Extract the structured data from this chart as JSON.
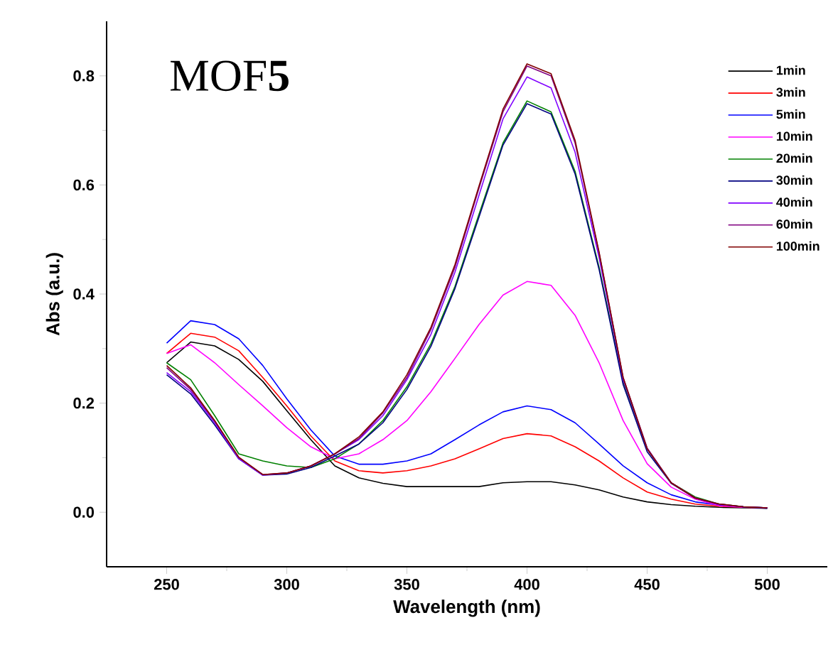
{
  "chart_data": {
    "type": "line",
    "title": "MOF**5**",
    "xlabel": "Wavelength (nm)",
    "ylabel": "Abs (a.u.)",
    "x": [
      250,
      260,
      270,
      280,
      290,
      300,
      310,
      320,
      330,
      340,
      350,
      360,
      370,
      380,
      390,
      400,
      410,
      420,
      430,
      440,
      450,
      460,
      470,
      480,
      490,
      500
    ],
    "xlim": [
      225,
      525
    ],
    "xticks": [
      250,
      300,
      350,
      400,
      450,
      500
    ],
    "ylim": [
      -0.1,
      0.9
    ],
    "yticks": [
      {
        "value": 0,
        "label": "0.0"
      },
      {
        "value": 0.2,
        "label": "0.2"
      },
      {
        "value": 0.4,
        "label": "0.4"
      },
      {
        "value": 0.6,
        "label": "0.6"
      },
      {
        "value": 0.8,
        "label": "0.8"
      }
    ],
    "legend": "top right",
    "marker": "none",
    "line_style": "solid",
    "series": [
      {
        "name": "1min",
        "color": "#000000",
        "values": [
          0.274,
          0.312,
          0.305,
          0.28,
          0.24,
          0.186,
          0.133,
          0.085,
          0.063,
          0.053,
          0.047,
          0.047,
          0.047,
          0.047,
          0.054,
          0.056,
          0.056,
          0.05,
          0.041,
          0.028,
          0.019,
          0.014,
          0.011,
          0.009,
          0.008,
          0.007
        ]
      },
      {
        "name": "3min",
        "color": "#ff0000",
        "values": [
          0.291,
          0.328,
          0.321,
          0.296,
          0.247,
          0.195,
          0.14,
          0.094,
          0.076,
          0.072,
          0.076,
          0.085,
          0.098,
          0.116,
          0.135,
          0.144,
          0.14,
          0.12,
          0.094,
          0.063,
          0.037,
          0.024,
          0.015,
          0.011,
          0.009,
          0.008
        ]
      },
      {
        "name": "5min",
        "color": "#0000ff",
        "values": [
          0.31,
          0.351,
          0.344,
          0.318,
          0.269,
          0.208,
          0.151,
          0.103,
          0.088,
          0.088,
          0.094,
          0.107,
          0.133,
          0.16,
          0.184,
          0.195,
          0.188,
          0.164,
          0.125,
          0.085,
          0.054,
          0.032,
          0.019,
          0.013,
          0.01,
          0.008
        ]
      },
      {
        "name": "10min",
        "color": "#ff00ff",
        "values": [
          0.291,
          0.307,
          0.274,
          0.234,
          0.195,
          0.155,
          0.12,
          0.098,
          0.107,
          0.133,
          0.168,
          0.221,
          0.282,
          0.344,
          0.398,
          0.423,
          0.416,
          0.361,
          0.274,
          0.168,
          0.089,
          0.046,
          0.024,
          0.012,
          0.009,
          0.008
        ]
      },
      {
        "name": "20min",
        "color": "#008000",
        "values": [
          0.274,
          0.243,
          0.177,
          0.107,
          0.094,
          0.085,
          0.082,
          0.098,
          0.125,
          0.168,
          0.23,
          0.309,
          0.414,
          0.546,
          0.677,
          0.754,
          0.734,
          0.625,
          0.449,
          0.239,
          0.116,
          0.054,
          0.028,
          0.015,
          0.01,
          0.008
        ]
      },
      {
        "name": "30min",
        "color": "#000080",
        "values": [
          0.252,
          0.217,
          0.16,
          0.098,
          0.068,
          0.07,
          0.082,
          0.103,
          0.125,
          0.164,
          0.225,
          0.304,
          0.41,
          0.541,
          0.673,
          0.749,
          0.73,
          0.62,
          0.445,
          0.234,
          0.111,
          0.053,
          0.026,
          0.014,
          0.01,
          0.007
        ]
      },
      {
        "name": "40min",
        "color": "#8000ff",
        "values": [
          0.256,
          0.221,
          0.164,
          0.098,
          0.068,
          0.072,
          0.085,
          0.107,
          0.133,
          0.177,
          0.243,
          0.326,
          0.44,
          0.581,
          0.721,
          0.798,
          0.778,
          0.66,
          0.467,
          0.243,
          0.116,
          0.054,
          0.026,
          0.014,
          0.01,
          0.008
        ]
      },
      {
        "name": "60min",
        "color": "#800080",
        "values": [
          0.265,
          0.225,
          0.167,
          0.1,
          0.069,
          0.072,
          0.085,
          0.107,
          0.135,
          0.182,
          0.247,
          0.335,
          0.449,
          0.594,
          0.734,
          0.818,
          0.8,
          0.677,
          0.475,
          0.247,
          0.118,
          0.054,
          0.026,
          0.015,
          0.01,
          0.008
        ]
      },
      {
        "name": "100min",
        "color": "#800000",
        "values": [
          0.269,
          0.228,
          0.168,
          0.101,
          0.069,
          0.072,
          0.085,
          0.107,
          0.138,
          0.184,
          0.252,
          0.339,
          0.454,
          0.598,
          0.739,
          0.822,
          0.804,
          0.682,
          0.477,
          0.247,
          0.116,
          0.054,
          0.026,
          0.015,
          0.01,
          0.008
        ]
      }
    ]
  }
}
